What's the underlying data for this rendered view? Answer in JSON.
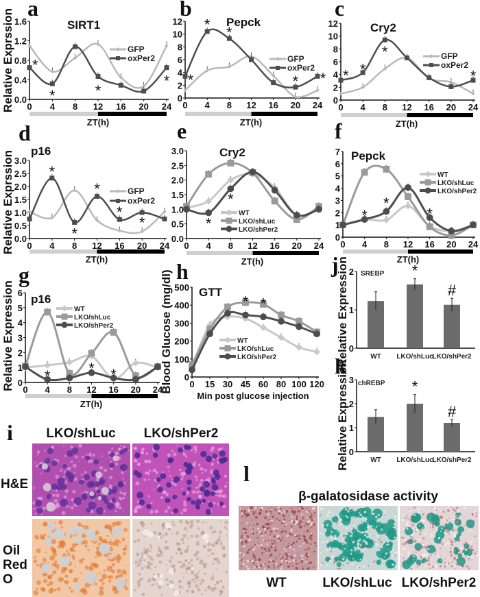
{
  "panel_i": {
    "label": "i",
    "columns": [
      "LKO/shLuc",
      "LKO/shPer2"
    ],
    "rows": [
      "H&E",
      "Oil Red O"
    ],
    "row_lines": [
      [
        "H&E"
      ],
      [
        "Oil",
        "Red",
        "O"
      ]
    ]
  },
  "panel_l": {
    "label": "l",
    "title": "β-galatosidase activity",
    "columns": [
      "WT",
      "LKO/shLuc",
      "LKO/shPer2"
    ]
  },
  "colors": {
    "light_series": "#b9b9b9",
    "mid_series": "#9a9a9a",
    "dark_series": "#4d4d4d",
    "bar_fill": "#6b6b6b",
    "light_phase": "#cfcfcf",
    "dark_phase": "#000000"
  },
  "chart_data": [
    {
      "panel": "a",
      "type": "line",
      "title": "SIRT1",
      "xlabel": "ZT(h)",
      "ylabel": "Relative Exprssion",
      "x": [
        0,
        4,
        8,
        12,
        16,
        20,
        24
      ],
      "xtick_labels": [
        "0",
        "4",
        "8",
        "12",
        "16",
        "20",
        "24"
      ],
      "ylim": [
        0,
        1.6
      ],
      "ytick_labels": [
        "0.0",
        "0.4",
        "0.8",
        "1.2",
        "1.6"
      ],
      "zt_bar": [
        {
          "from": 0,
          "to": 12,
          "phase": "light"
        },
        {
          "from": 12,
          "to": 24,
          "phase": "dark"
        }
      ],
      "legend": "center-right",
      "series": [
        {
          "name": "GFP",
          "marker": "diamond",
          "color": "#b9b9b9",
          "values": [
            1.1,
            0.57,
            0.85,
            1.13,
            0.45,
            0.27,
            1.1
          ]
        },
        {
          "name": "oxPer2",
          "marker": "square",
          "color": "#4d4d4d",
          "values": [
            0.65,
            0.32,
            1.08,
            0.47,
            0.29,
            0.17,
            0.65
          ]
        }
      ],
      "annotations": [
        {
          "x": 1,
          "y": 0.72,
          "text": "*"
        },
        {
          "x": 4,
          "y": 0.1,
          "text": "*"
        },
        {
          "x": 12,
          "y": 0.2,
          "text": "*"
        },
        {
          "x": 24,
          "y": 0.4,
          "text": "*"
        }
      ]
    },
    {
      "panel": "b",
      "type": "line",
      "title": "Pepck",
      "xlabel": "ZT(h)",
      "ylabel": "",
      "x": [
        0,
        4,
        8,
        12,
        16,
        20,
        24
      ],
      "xtick_labels": [
        "0",
        "4",
        "8",
        "12",
        "16",
        "20",
        "24"
      ],
      "ylim": [
        0,
        12
      ],
      "ytick_labels": [
        "0",
        "2",
        "4",
        "6",
        "8",
        "10",
        "12"
      ],
      "zt_bar": [
        {
          "from": 0,
          "to": 12,
          "phase": "light"
        },
        {
          "from": 12,
          "to": 24,
          "phase": "dark"
        }
      ],
      "legend": "center-right",
      "series": [
        {
          "name": "GFP",
          "marker": "diamond",
          "color": "#b9b9b9",
          "values": [
            1.2,
            4.3,
            4.9,
            6.5,
            3.5,
            0.2,
            1.2
          ]
        },
        {
          "name": "oxPer2",
          "marker": "square",
          "color": "#4d4d4d",
          "values": [
            3.4,
            10.4,
            9.3,
            6.0,
            2.4,
            1.7,
            3.4
          ]
        }
      ],
      "annotations": [
        {
          "x": 1,
          "y": 3.0,
          "text": "*"
        },
        {
          "x": 4,
          "y": 11.6,
          "text": "*"
        },
        {
          "x": 8,
          "y": 10.4,
          "text": "*"
        },
        {
          "x": 20,
          "y": 2.8,
          "text": "*"
        },
        {
          "x": 25,
          "y": 3.2,
          "text": "*"
        }
      ]
    },
    {
      "panel": "c",
      "type": "line",
      "title": "Cry2",
      "xlabel": "ZT(h)",
      "ylabel": "",
      "x": [
        0,
        4,
        8,
        12,
        16,
        20,
        24
      ],
      "xtick_labels": [
        "0",
        "4",
        "8",
        "12",
        "16",
        "20",
        "24"
      ],
      "ylim": [
        0,
        12
      ],
      "ytick_labels": [
        "0",
        "2",
        "4",
        "6",
        "8",
        "10",
        "12"
      ],
      "zt_bar": [
        {
          "from": 0,
          "to": 12,
          "phase": "light"
        },
        {
          "from": 12,
          "to": 24,
          "phase": "dark"
        }
      ],
      "legend": "center-right",
      "series": [
        {
          "name": "GFP",
          "marker": "diamond",
          "color": "#b9b9b9",
          "values": [
            1.0,
            2.0,
            4.9,
            6.6,
            3.4,
            2.8,
            1.0
          ]
        },
        {
          "name": "oxPer2",
          "marker": "square",
          "color": "#4d4d4d",
          "values": [
            3.1,
            4.3,
            9.4,
            6.6,
            3.5,
            2.1,
            3.1
          ]
        }
      ],
      "annotations": [
        {
          "x": 0.9,
          "y": 4.0,
          "text": "*"
        },
        {
          "x": 4,
          "y": 5.0,
          "text": "*"
        },
        {
          "x": 8,
          "y": 7.7,
          "text": "*"
        },
        {
          "x": 24,
          "y": 3.9,
          "text": "*"
        }
      ]
    },
    {
      "panel": "d",
      "type": "line",
      "title": "p16",
      "xlabel": "ZT(h)",
      "ylabel": "Relative Exprssion",
      "x": [
        0,
        4,
        8,
        12,
        16,
        20,
        24
      ],
      "xtick_labels": [
        "0",
        "4",
        "8",
        "12",
        "16",
        "20",
        "24"
      ],
      "ylim": [
        0,
        3
      ],
      "ytick_labels": [
        "0.0",
        "0.5",
        "1.0",
        "1.5",
        "2.0",
        "2.5",
        "3.0"
      ],
      "zt_bar": [
        {
          "from": 0,
          "to": 12,
          "phase": "light"
        },
        {
          "from": 12,
          "to": 24,
          "phase": "dark"
        }
      ],
      "legend": "center-right",
      "series": [
        {
          "name": "GFP",
          "marker": "diamond",
          "color": "#b9b9b9",
          "values": [
            1.03,
            0.8,
            1.85,
            0.7,
            0.3,
            0.27,
            1.03
          ]
        },
        {
          "name": "oxPer2",
          "marker": "square",
          "color": "#4d4d4d",
          "values": [
            0.75,
            2.32,
            0.62,
            1.62,
            0.73,
            1.0,
            0.75
          ]
        }
      ],
      "annotations": [
        {
          "x": 4,
          "y": 2.6,
          "text": "*"
        },
        {
          "x": 8,
          "y": 0.22,
          "text": "*"
        },
        {
          "x": 12,
          "y": 1.95,
          "text": "*"
        },
        {
          "x": 16,
          "y": 1.05,
          "text": "*"
        },
        {
          "x": 20,
          "y": 0.65,
          "text": "*"
        }
      ]
    },
    {
      "panel": "e",
      "type": "line",
      "title": "Cry2",
      "xlabel": "ZT(h)",
      "ylabel": "",
      "x": [
        0,
        4,
        8,
        12,
        16,
        20,
        24
      ],
      "xtick_labels": [
        "0",
        "4",
        "8",
        "12",
        "16",
        "20",
        "24"
      ],
      "ylim": [
        0,
        3
      ],
      "ytick_labels": [
        "0.0",
        "0.5",
        "1.0",
        "1.5",
        "2.0",
        "2.5",
        "3.0"
      ],
      "zt_bar": [
        {
          "from": 0,
          "to": 12,
          "phase": "light"
        },
        {
          "from": 12,
          "to": 24,
          "phase": "dark"
        }
      ],
      "legend": "bottom-center",
      "series": [
        {
          "name": "WT",
          "marker": "diamond",
          "color": "#c8c8c8",
          "values": [
            1.05,
            1.28,
            2.0,
            2.2,
            1.75,
            0.8,
            1.05
          ]
        },
        {
          "name": "LKO/shLuc",
          "marker": "square",
          "color": "#9a9a9a",
          "values": [
            1.1,
            2.2,
            2.58,
            2.25,
            1.28,
            0.65,
            1.1
          ]
        },
        {
          "name": "LKO/shPer2",
          "marker": "circle",
          "color": "#4d4d4d",
          "values": [
            1.0,
            0.88,
            1.7,
            2.28,
            1.65,
            0.8,
            1.0
          ]
        }
      ],
      "annotations": [
        {
          "x": 4,
          "y": 0.55,
          "text": "*"
        },
        {
          "x": 8,
          "y": 1.38,
          "text": "*"
        }
      ]
    },
    {
      "panel": "f",
      "type": "line",
      "title": "Pepck",
      "xlabel": "ZT(h)",
      "ylabel": "",
      "x": [
        0,
        4,
        8,
        12,
        16,
        20,
        24
      ],
      "xtick_labels": [
        "0",
        "4",
        "8",
        "12",
        "16",
        "20",
        "24"
      ],
      "ylim": [
        0,
        7
      ],
      "ytick_labels": [
        "0",
        "1",
        "2",
        "3",
        "4",
        "5",
        "6",
        "7"
      ],
      "zt_bar": [
        {
          "from": 0,
          "to": 12,
          "phase": "light"
        },
        {
          "from": 12,
          "to": 24,
          "phase": "dark"
        }
      ],
      "legend": "top-right",
      "series": [
        {
          "name": "WT",
          "marker": "diamond",
          "color": "#c8c8c8",
          "values": [
            1.0,
            1.45,
            1.4,
            2.55,
            0.9,
            0.5,
            1.0
          ]
        },
        {
          "name": "LKO/shLuc",
          "marker": "square",
          "color": "#9a9a9a",
          "values": [
            1.0,
            5.3,
            5.55,
            3.3,
            0.85,
            0.15,
            1.0
          ]
        },
        {
          "name": "LKO/shPer2",
          "marker": "circle",
          "color": "#4d4d4d",
          "values": [
            1.0,
            1.45,
            2.1,
            4.05,
            1.6,
            0.5,
            1.0
          ]
        }
      ],
      "annotations": [
        {
          "x": 4,
          "y": 1.85,
          "text": "*"
        },
        {
          "x": 8,
          "y": 2.85,
          "text": "*"
        },
        {
          "x": 16,
          "y": 2.0,
          "text": "*"
        }
      ]
    },
    {
      "panel": "g",
      "type": "line",
      "title": "p16",
      "xlabel": "ZT(h)",
      "ylabel": "Relative Expression",
      "x": [
        0,
        4,
        8,
        12,
        16,
        20,
        24
      ],
      "xtick_labels": [
        "0",
        "4",
        "8",
        "12",
        "16",
        "20",
        "24"
      ],
      "ylim": [
        0,
        6
      ],
      "ytick_labels": [
        "0",
        "1",
        "2",
        "3",
        "4",
        "5",
        "6"
      ],
      "zt_bar": [
        {
          "from": 0,
          "to": 12,
          "phase": "light"
        },
        {
          "from": 12,
          "to": 24,
          "phase": "dark"
        }
      ],
      "legend": "top-center",
      "series": [
        {
          "name": "WT",
          "marker": "diamond",
          "color": "#c8c8c8",
          "values": [
            1.0,
            1.15,
            1.35,
            1.75,
            0.25,
            1.3,
            1.0
          ]
        },
        {
          "name": "LKO/shLuc",
          "marker": "square",
          "color": "#9a9a9a",
          "values": [
            1.1,
            4.7,
            0.6,
            1.95,
            3.35,
            0.45,
            1.05
          ]
        },
        {
          "name": "LKO/shPer2",
          "marker": "circle",
          "color": "#4d4d4d",
          "values": [
            1.05,
            0.2,
            0.3,
            0.65,
            0.3,
            0.2,
            1.05
          ]
        }
      ],
      "annotations": [
        {
          "x": 4,
          "y": 0.5,
          "text": "*"
        },
        {
          "x": 12,
          "y": 1.0,
          "text": "*"
        },
        {
          "x": 16,
          "y": 0.6,
          "text": "*"
        }
      ]
    },
    {
      "panel": "h",
      "type": "line",
      "title": "GTT",
      "xlabel": "Min post glucose injection",
      "ylabel": "Blood Glucose (mg/dl)",
      "x": [
        0,
        15,
        30,
        45,
        60,
        80,
        100,
        120
      ],
      "xtick_labels": [
        "0",
        "15",
        "30",
        "45",
        "60",
        "80",
        "100",
        "120"
      ],
      "ylim": [
        0,
        500
      ],
      "ytick_labels": [
        "0",
        "100",
        "200",
        "300",
        "400",
        "500"
      ],
      "legend": "center",
      "series": [
        {
          "name": "WT",
          "marker": "diamond",
          "color": "#c8c8c8",
          "values": [
            55,
            290,
            335,
            325,
            275,
            220,
            165,
            140
          ]
        },
        {
          "name": "LKO/shLuc",
          "marker": "square",
          "color": "#9a9a9a",
          "values": [
            70,
            265,
            390,
            415,
            405,
            345,
            310,
            250
          ]
        },
        {
          "name": "LKO/shPer2",
          "marker": "circle",
          "color": "#4d4d4d",
          "values": [
            40,
            240,
            355,
            345,
            335,
            310,
            280,
            240
          ]
        }
      ],
      "annotations": [
        {
          "x": 45,
          "y": 425,
          "text": "*"
        },
        {
          "x": 60,
          "y": 415,
          "text": "*"
        }
      ]
    },
    {
      "panel": "j",
      "type": "bar",
      "title": "SREBP",
      "xlabel": "",
      "ylabel": "Relative Expression",
      "categories": [
        "WT",
        "LKO/shLuc",
        "LKO/shPer2"
      ],
      "values": [
        1.23,
        1.66,
        1.13
      ],
      "errors": [
        0.24,
        0.15,
        0.17
      ],
      "marks": [
        "",
        "*",
        "#"
      ],
      "ylim": [
        0,
        2
      ],
      "ytick_labels": [
        "0",
        "1",
        "2"
      ]
    },
    {
      "panel": "k",
      "type": "bar",
      "title": "chREBP",
      "xlabel": "",
      "ylabel": "Relative Expression",
      "categories": [
        "WT",
        "LKO/shLuc",
        "LKO/shPer2"
      ],
      "values": [
        1.45,
        2.0,
        1.2
      ],
      "errors": [
        0.3,
        0.38,
        0.15
      ],
      "marks": [
        "",
        "*",
        "#"
      ],
      "ylim": [
        0,
        3
      ],
      "ytick_labels": [
        "0",
        "1",
        "2",
        "3"
      ]
    }
  ]
}
